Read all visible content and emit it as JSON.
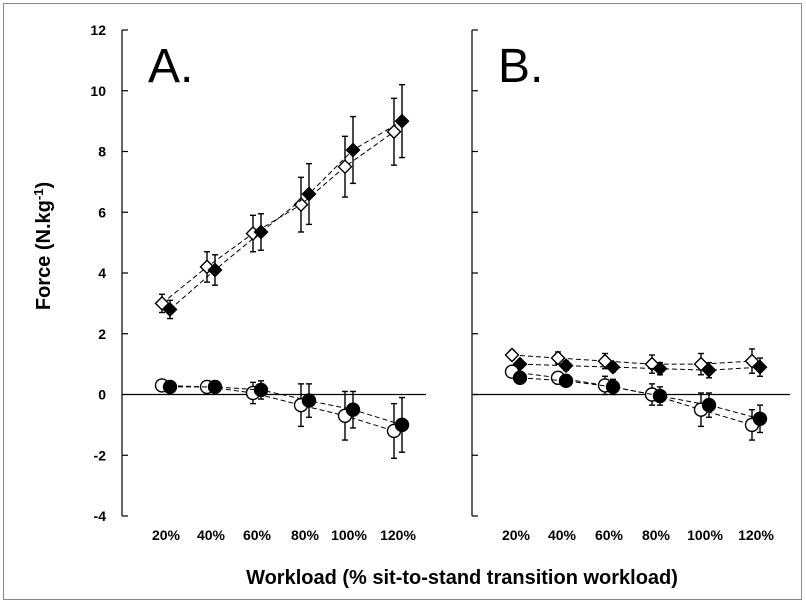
{
  "chart_data": {
    "type": "line",
    "ylabel_main": "Force (N.kg",
    "ylabel_sup": "-1",
    "ylabel_end": ")",
    "xlabel": "Workload (% sit-to-stand transition workload)",
    "ylim": [
      -4,
      12
    ],
    "yticks": [
      "-4",
      "-2",
      "0",
      "2",
      "4",
      "6",
      "8",
      "10",
      "12"
    ],
    "categories": [
      "20%",
      "40%",
      "60%",
      "80%",
      "100%",
      "120%"
    ],
    "panels": [
      {
        "label": "A.",
        "series": [
          {
            "marker": "diamond",
            "fill": "open",
            "values": [
              3.0,
              4.2,
              5.3,
              6.25,
              7.5,
              8.65
            ],
            "errors": [
              0.3,
              0.5,
              0.6,
              0.9,
              1.0,
              1.1
            ]
          },
          {
            "marker": "diamond",
            "fill": "filled",
            "values": [
              2.8,
              4.1,
              5.35,
              6.6,
              8.05,
              9.0
            ],
            "errors": [
              0.3,
              0.5,
              0.6,
              1.0,
              1.1,
              1.2
            ]
          },
          {
            "marker": "circle",
            "fill": "open",
            "values": [
              0.3,
              0.25,
              0.05,
              -0.35,
              -0.7,
              -1.2
            ],
            "errors": [
              0.15,
              0.2,
              0.35,
              0.7,
              0.8,
              0.9
            ]
          },
          {
            "marker": "circle",
            "fill": "filled",
            "values": [
              0.25,
              0.25,
              0.15,
              -0.2,
              -0.5,
              -1.0
            ],
            "errors": [
              0.1,
              0.15,
              0.3,
              0.55,
              0.6,
              0.9
            ]
          }
        ]
      },
      {
        "label": "B.",
        "series": [
          {
            "marker": "diamond",
            "fill": "open",
            "values": [
              1.3,
              1.2,
              1.1,
              1.0,
              1.0,
              1.1
            ],
            "errors": [
              0.15,
              0.2,
              0.25,
              0.3,
              0.35,
              0.4
            ]
          },
          {
            "marker": "diamond",
            "fill": "filled",
            "values": [
              1.0,
              0.95,
              0.9,
              0.85,
              0.8,
              0.9
            ],
            "errors": [
              0.12,
              0.15,
              0.15,
              0.2,
              0.25,
              0.3
            ]
          },
          {
            "marker": "circle",
            "fill": "open",
            "values": [
              0.75,
              0.55,
              0.3,
              0.0,
              -0.5,
              -1.0
            ],
            "errors": [
              0.15,
              0.2,
              0.3,
              0.35,
              0.55,
              0.5
            ]
          },
          {
            "marker": "circle",
            "fill": "filled",
            "values": [
              0.55,
              0.45,
              0.25,
              -0.05,
              -0.35,
              -0.8
            ],
            "errors": [
              0.12,
              0.15,
              0.25,
              0.3,
              0.4,
              0.45
            ]
          }
        ]
      }
    ]
  }
}
